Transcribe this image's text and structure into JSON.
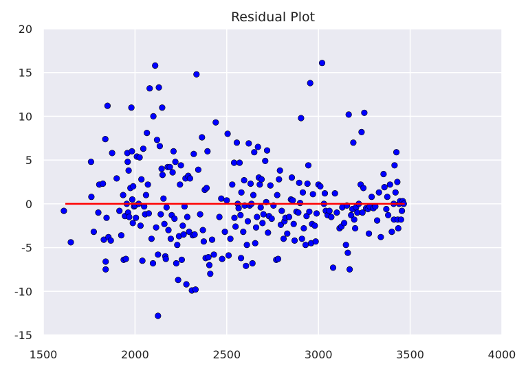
{
  "chart_data": {
    "type": "scatter",
    "title": "Residual Plot",
    "xlabel": "",
    "ylabel": "",
    "xlim": [
      1500,
      4000
    ],
    "ylim": [
      -15,
      20
    ],
    "xticks": [
      1500,
      2000,
      2500,
      3000,
      3500,
      4000
    ],
    "yticks": [
      -15,
      -10,
      -5,
      0,
      5,
      10,
      15,
      20
    ],
    "grid": true,
    "colors": {
      "background": "#EAEAF2",
      "grid": "#FFFFFF",
      "points": "#0000FF",
      "line": "#FF0000"
    },
    "reference_line": {
      "y": 0,
      "x_range": [
        1620,
        3470
      ]
    },
    "points": [
      [
        1612,
        -0.8
      ],
      [
        1650,
        -4.4
      ],
      [
        1760,
        4.8
      ],
      [
        1762,
        0.8
      ],
      [
        1775,
        -3.2
      ],
      [
        1800,
        -1.0
      ],
      [
        1805,
        2.2
      ],
      [
        1825,
        2.3
      ],
      [
        1830,
        -4.1
      ],
      [
        1838,
        7.4
      ],
      [
        1840,
        -6.6
      ],
      [
        1840,
        -7.5
      ],
      [
        1845,
        -1.6
      ],
      [
        1850,
        11.2
      ],
      [
        1855,
        -3.8
      ],
      [
        1868,
        -4.2
      ],
      [
        1875,
        5.8
      ],
      [
        1900,
        2.9
      ],
      [
        1915,
        -0.8
      ],
      [
        1925,
        -3.6
      ],
      [
        1935,
        1.0
      ],
      [
        1938,
        -6.4
      ],
      [
        1945,
        -1.4
      ],
      [
        1950,
        -6.3
      ],
      [
        1955,
        0.0
      ],
      [
        1958,
        5.8
      ],
      [
        1960,
        4.8
      ],
      [
        1962,
        -1.0
      ],
      [
        1965,
        3.8
      ],
      [
        1968,
        -1.5
      ],
      [
        1975,
        1.8
      ],
      [
        1980,
        11.0
      ],
      [
        1983,
        6.0
      ],
      [
        1985,
        0.5
      ],
      [
        1988,
        -2.2
      ],
      [
        1990,
        2.0
      ],
      [
        1995,
        -0.3
      ],
      [
        2000,
        -0.2
      ],
      [
        2005,
        -1.6
      ],
      [
        2010,
        5.4
      ],
      [
        2020,
        0.0
      ],
      [
        2025,
        5.3
      ],
      [
        2030,
        -2.5
      ],
      [
        2035,
        2.8
      ],
      [
        2040,
        -6.5
      ],
      [
        2045,
        6.3
      ],
      [
        2050,
        -0.3
      ],
      [
        2055,
        -1.2
      ],
      [
        2060,
        1.0
      ],
      [
        2065,
        8.1
      ],
      [
        2070,
        2.2
      ],
      [
        2075,
        -1.1
      ],
      [
        2080,
        13.2
      ],
      [
        2090,
        -4.0
      ],
      [
        2098,
        -6.8
      ],
      [
        2100,
        10.0
      ],
      [
        2110,
        15.8
      ],
      [
        2115,
        -2.7
      ],
      [
        2120,
        7.3
      ],
      [
        2125,
        -5.8
      ],
      [
        2125,
        -12.8
      ],
      [
        2130,
        13.3
      ],
      [
        2135,
        6.6
      ],
      [
        2140,
        -1.2
      ],
      [
        2145,
        4.0
      ],
      [
        2148,
        11.0
      ],
      [
        2150,
        3.3
      ],
      [
        2155,
        0.6
      ],
      [
        2160,
        -2.3
      ],
      [
        2165,
        -6.0
      ],
      [
        2168,
        -6.3
      ],
      [
        2172,
        -0.4
      ],
      [
        2178,
        4.2
      ],
      [
        2182,
        -3.0
      ],
      [
        2190,
        4.2
      ],
      [
        2195,
        -4.0
      ],
      [
        2200,
        -1.3
      ],
      [
        2205,
        3.6
      ],
      [
        2210,
        6.0
      ],
      [
        2215,
        -1.7
      ],
      [
        2220,
        4.8
      ],
      [
        2225,
        -6.8
      ],
      [
        2230,
        -4.7
      ],
      [
        2235,
        -8.7
      ],
      [
        2240,
        -3.7
      ],
      [
        2245,
        2.2
      ],
      [
        2250,
        4.4
      ],
      [
        2255,
        -6.4
      ],
      [
        2260,
        -2.5
      ],
      [
        2265,
        -3.5
      ],
      [
        2270,
        -0.3
      ],
      [
        2275,
        2.9
      ],
      [
        2280,
        -9.2
      ],
      [
        2285,
        -1.5
      ],
      [
        2290,
        3.2
      ],
      [
        2295,
        -3.2
      ],
      [
        2300,
        2.9
      ],
      [
        2310,
        -9.9
      ],
      [
        2315,
        -3.6
      ],
      [
        2320,
        5.7
      ],
      [
        2325,
        -3.5
      ],
      [
        2330,
        -9.8
      ],
      [
        2335,
        14.8
      ],
      [
        2345,
        3.9
      ],
      [
        2355,
        -1.2
      ],
      [
        2365,
        7.6
      ],
      [
        2370,
        -3.0
      ],
      [
        2375,
        -4.3
      ],
      [
        2380,
        1.6
      ],
      [
        2385,
        -6.2
      ],
      [
        2390,
        1.8
      ],
      [
        2395,
        6.0
      ],
      [
        2400,
        -6.1
      ],
      [
        2405,
        -7.0
      ],
      [
        2410,
        -8.0
      ],
      [
        2420,
        -4.1
      ],
      [
        2430,
        -5.8
      ],
      [
        2440,
        9.3
      ],
      [
        2460,
        -1.5
      ],
      [
        2470,
        0.6
      ],
      [
        2475,
        -6.3
      ],
      [
        2490,
        -3.2
      ],
      [
        2500,
        0.4
      ],
      [
        2505,
        8.0
      ],
      [
        2510,
        -5.9
      ],
      [
        2520,
        -4.0
      ],
      [
        2530,
        2.2
      ],
      [
        2540,
        4.7
      ],
      [
        2542,
        -1.6
      ],
      [
        2548,
        -2.6
      ],
      [
        2555,
        7.0
      ],
      [
        2560,
        0.0
      ],
      [
        2565,
        -0.5
      ],
      [
        2570,
        4.7
      ],
      [
        2575,
        -1.3
      ],
      [
        2578,
        -6.2
      ],
      [
        2580,
        1.3
      ],
      [
        2590,
        -3.2
      ],
      [
        2595,
        2.7
      ],
      [
        2598,
        -0.2
      ],
      [
        2605,
        -7.1
      ],
      [
        2610,
        -4.7
      ],
      [
        2615,
        -2.0
      ],
      [
        2620,
        6.9
      ],
      [
        2625,
        -0.2
      ],
      [
        2630,
        2.3
      ],
      [
        2635,
        0.0
      ],
      [
        2640,
        -6.8
      ],
      [
        2645,
        1.0
      ],
      [
        2650,
        5.9
      ],
      [
        2655,
        -4.5
      ],
      [
        2660,
        -2.7
      ],
      [
        2665,
        -1.5
      ],
      [
        2670,
        6.5
      ],
      [
        2675,
        3.0
      ],
      [
        2680,
        2.2
      ],
      [
        2685,
        -0.4
      ],
      [
        2690,
        2.8
      ],
      [
        2695,
        -2.2
      ],
      [
        2700,
        -1.2
      ],
      [
        2710,
        4.9
      ],
      [
        2715,
        0.2
      ],
      [
        2720,
        6.1
      ],
      [
        2725,
        -3.3
      ],
      [
        2730,
        -1.4
      ],
      [
        2738,
        2.1
      ],
      [
        2745,
        -1.7
      ],
      [
        2755,
        -0.2
      ],
      [
        2770,
        -6.4
      ],
      [
        2775,
        1.0
      ],
      [
        2780,
        -6.3
      ],
      [
        2785,
        2.8
      ],
      [
        2790,
        3.8
      ],
      [
        2795,
        -2.4
      ],
      [
        2800,
        -0.8
      ],
      [
        2810,
        -4.0
      ],
      [
        2815,
        -2.0
      ],
      [
        2820,
        -1.6
      ],
      [
        2830,
        -3.4
      ],
      [
        2840,
        -1.5
      ],
      [
        2850,
        0.5
      ],
      [
        2855,
        3.0
      ],
      [
        2860,
        0.4
      ],
      [
        2865,
        -2.3
      ],
      [
        2870,
        -4.2
      ],
      [
        2880,
        -0.9
      ],
      [
        2890,
        -1.0
      ],
      [
        2895,
        2.4
      ],
      [
        2900,
        0.1
      ],
      [
        2905,
        9.8
      ],
      [
        2910,
        -4.0
      ],
      [
        2915,
        1.3
      ],
      [
        2920,
        -2.8
      ],
      [
        2930,
        -4.7
      ],
      [
        2935,
        -1.4
      ],
      [
        2940,
        2.3
      ],
      [
        2945,
        4.4
      ],
      [
        2950,
        -0.9
      ],
      [
        2955,
        13.8
      ],
      [
        2960,
        -4.5
      ],
      [
        2965,
        -2.3
      ],
      [
        2970,
        1.1
      ],
      [
        2980,
        -2.5
      ],
      [
        2985,
        -4.3
      ],
      [
        2990,
        -1.1
      ],
      [
        3000,
        2.2
      ],
      [
        3010,
        2.0
      ],
      [
        3020,
        16.1
      ],
      [
        3030,
        0.0
      ],
      [
        3035,
        1.2
      ],
      [
        3040,
        -0.8
      ],
      [
        3050,
        -1.3
      ],
      [
        3060,
        -0.8
      ],
      [
        3070,
        -1.5
      ],
      [
        3080,
        -7.3
      ],
      [
        3090,
        1.2
      ],
      [
        3100,
        -1.0
      ],
      [
        3115,
        -2.8
      ],
      [
        3125,
        -2.6
      ],
      [
        3130,
        -0.4
      ],
      [
        3140,
        -2.2
      ],
      [
        3150,
        -4.7
      ],
      [
        3155,
        -0.2
      ],
      [
        3160,
        -5.6
      ],
      [
        3165,
        10.2
      ],
      [
        3170,
        -7.5
      ],
      [
        3178,
        -1.3
      ],
      [
        3185,
        -0.6
      ],
      [
        3190,
        7.0
      ],
      [
        3195,
        -1.8
      ],
      [
        3200,
        -2.8
      ],
      [
        3205,
        -0.4
      ],
      [
        3212,
        -1.0
      ],
      [
        3220,
        0.0
      ],
      [
        3230,
        2.2
      ],
      [
        3235,
        8.2
      ],
      [
        3240,
        -1.0
      ],
      [
        3245,
        1.8
      ],
      [
        3250,
        10.4
      ],
      [
        3260,
        -0.5
      ],
      [
        3270,
        -0.6
      ],
      [
        3275,
        -3.4
      ],
      [
        3280,
        -0.3
      ],
      [
        3290,
        0.8
      ],
      [
        3300,
        -0.5
      ],
      [
        3310,
        -0.3
      ],
      [
        3320,
        -1.9
      ],
      [
        3330,
        1.3
      ],
      [
        3340,
        -3.8
      ],
      [
        3355,
        3.4
      ],
      [
        3360,
        1.9
      ],
      [
        3370,
        -0.6
      ],
      [
        3375,
        0.8
      ],
      [
        3380,
        -1.3
      ],
      [
        3390,
        2.2
      ],
      [
        3400,
        -3.2
      ],
      [
        3410,
        0.0
      ],
      [
        3412,
        -1.8
      ],
      [
        3415,
        4.4
      ],
      [
        3420,
        1.3
      ],
      [
        3425,
        5.9
      ],
      [
        3430,
        2.5
      ],
      [
        3432,
        -1.8
      ],
      [
        3435,
        -2.8
      ],
      [
        3440,
        0.0
      ],
      [
        3445,
        0.3
      ],
      [
        3450,
        -1.8
      ],
      [
        3455,
        -0.8
      ],
      [
        3460,
        0.3
      ],
      [
        3465,
        0.0
      ]
    ]
  }
}
